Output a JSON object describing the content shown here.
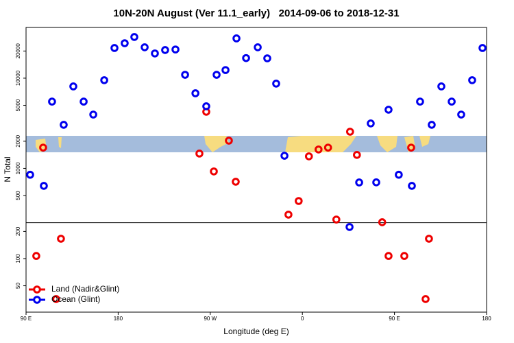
{
  "chart_data": {
    "type": "scatter",
    "title": "10N-20N August (Ver 11.1_early)   2014-09-06 to 2018-12-31",
    "x_label": "Longitude (deg E)",
    "y_label": "N Total",
    "log_y": true,
    "legend": "lower left",
    "xlim": [
      90,
      540
    ],
    "xticks": [
      {
        "value": 90,
        "label": "90 E"
      },
      180,
      {
        "value": 270,
        "label": "90 W"
      },
      {
        "value": 360,
        "label": "0"
      },
      {
        "value": 450,
        "label": "90 E"
      },
      {
        "value": 540,
        "label": "180"
      }
    ],
    "ylim": [
      25.5,
      36500
    ],
    "yticks": [
      50,
      100,
      200,
      500,
      1000,
      2000,
      5000,
      10000,
      20000
    ],
    "reference_line": 250,
    "series": [
      {
        "name": "Land (Nadir&Glint)",
        "color": "#ee0000",
        "x": [
          100,
          106.7,
          119.4,
          124.1,
          259.4,
          266.1,
          273.5,
          288.2,
          294.9,
          346.4,
          356.4,
          366.4,
          375.8,
          385.1,
          393.2,
          406.6,
          413.3,
          438,
          444.2,
          459.6,
          466.3,
          480.4,
          483.7
        ],
        "values": [
          107,
          1700,
          35.6,
          166,
          1460,
          4240,
          925,
          2030,
          711,
          307,
          435,
          1360,
          1620,
          1700,
          271,
          2550,
          1410,
          253,
          107,
          107,
          1700,
          35.6,
          166
        ]
      },
      {
        "name": "Ocean (Glint)",
        "color": "#0000ee",
        "x": [
          94,
          107.4,
          115.4,
          126.8,
          136.2,
          146.3,
          155.7,
          166.4,
          176.4,
          186.4,
          195.8,
          205.9,
          215.9,
          225.9,
          236,
          245.4,
          255.5,
          266.1,
          276.2,
          284.9,
          295.6,
          305,
          316.4,
          325.7,
          334.4,
          342.5,
          406.1,
          415.5,
          426.8,
          432.2,
          444.2,
          454.2,
          467,
          475,
          486.4,
          495.8,
          505.9,
          515.2,
          525.9,
          536
        ],
        "values": [
          850,
          640,
          5500,
          3040,
          8100,
          5500,
          3950,
          9500,
          21600,
          24400,
          28600,
          22000,
          18800,
          20500,
          20800,
          10900,
          6800,
          4880,
          10900,
          12300,
          27600,
          16700,
          22000,
          16600,
          8700,
          1380,
          224,
          698,
          3150,
          700,
          4470,
          850,
          640,
          5500,
          3040,
          8100,
          5500,
          3950,
          9500,
          21600
        ]
      }
    ]
  }
}
